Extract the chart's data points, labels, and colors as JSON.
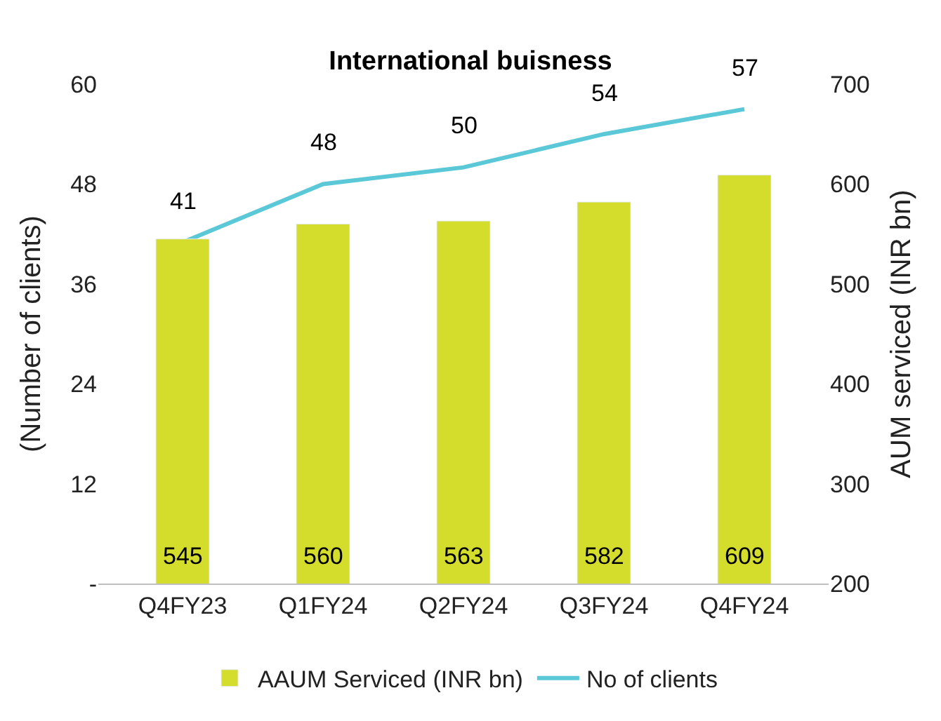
{
  "chart_data": {
    "type": "bar",
    "title": "International buisness",
    "ylabel": "(Number of clients)",
    "y2label": "AUM serviced (INR bn)",
    "categories": [
      "Q4FY23",
      "Q1FY24",
      "Q2FY24",
      "Q3FY24",
      "Q4FY24"
    ],
    "series": [
      {
        "name": "AAUM Serviced (INR bn)",
        "axis": "y2",
        "color": "#d4dc2c",
        "values": [
          545,
          560,
          563,
          582,
          609
        ]
      },
      {
        "name": "No of clients",
        "type": "line",
        "axis": "y",
        "color": "#5bc8d8",
        "values": [
          41,
          48,
          50,
          54,
          57
        ]
      }
    ],
    "ylim": [
      0,
      60
    ],
    "yticks": [
      {
        "value": 0,
        "label": "-"
      },
      12,
      24,
      36,
      48,
      60
    ],
    "y2lim": [
      200,
      700
    ],
    "y2ticks": [
      200,
      300,
      400,
      500,
      600,
      700
    ],
    "data_labels": true,
    "legend": "bottom",
    "marker": "none"
  }
}
